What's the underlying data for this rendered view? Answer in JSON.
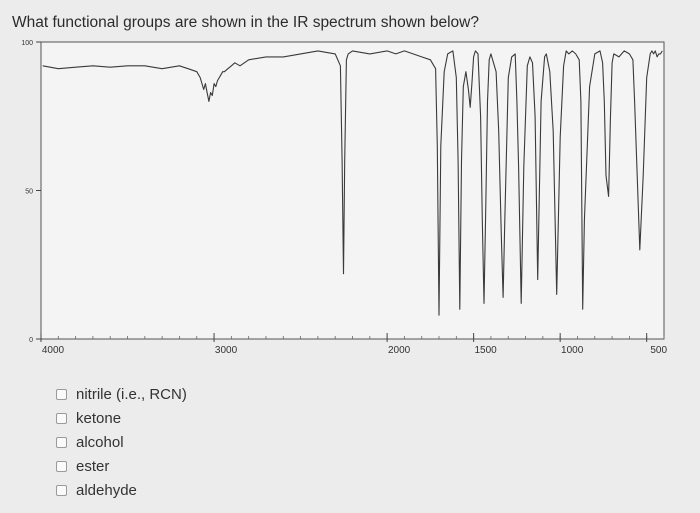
{
  "question": {
    "text": "What functional groups are shown in the IR spectrum shown below?"
  },
  "chart_data": {
    "type": "line",
    "title": "",
    "xlabel": "",
    "ylabel": "",
    "xlim": [
      4000,
      400
    ],
    "ylim": [
      0,
      100
    ],
    "x_ticks": [
      {
        "value": 4000,
        "label": "4000"
      },
      {
        "value": 3000,
        "label": "3000"
      },
      {
        "value": 2000,
        "label": "2000"
      },
      {
        "value": 1500,
        "label": "1500"
      },
      {
        "value": 1000,
        "label": "1000"
      },
      {
        "value": 500,
        "label": "500"
      }
    ],
    "y_ticks": [
      {
        "value": 100,
        "label": "100"
      },
      {
        "value": 50,
        "label": "50"
      },
      {
        "value": 0,
        "label": "0"
      }
    ],
    "grid": false,
    "series": [
      {
        "x": [
          3990,
          3900,
          3800,
          3700,
          3600,
          3500,
          3400,
          3300,
          3200,
          3150,
          3100,
          3080,
          3060,
          3050,
          3040,
          3030,
          3020,
          3010,
          3000,
          2990,
          2980,
          2960,
          2950,
          2940,
          2920,
          2900,
          2880,
          2850,
          2800,
          2700,
          2600,
          2500,
          2400,
          2300,
          2270,
          2260,
          2252,
          2245,
          2235,
          2225,
          2200,
          2100,
          2000,
          1950,
          1900,
          1850,
          1800,
          1750,
          1720,
          1710,
          1700,
          1690,
          1670,
          1650,
          1620,
          1600,
          1590,
          1580,
          1570,
          1560,
          1545,
          1530,
          1520,
          1510,
          1500,
          1490,
          1475,
          1460,
          1450,
          1440,
          1430,
          1420,
          1410,
          1400,
          1385,
          1370,
          1355,
          1340,
          1330,
          1320,
          1300,
          1280,
          1260,
          1250,
          1240,
          1225,
          1210,
          1190,
          1175,
          1160,
          1145,
          1130,
          1110,
          1090,
          1080,
          1060,
          1040,
          1020,
          1000,
          980,
          965,
          950,
          930,
          910,
          890,
          880,
          870,
          860,
          830,
          800,
          770,
          755,
          745,
          735,
          720,
          710,
          700,
          690,
          660,
          630,
          600,
          580,
          570,
          555,
          540,
          520,
          500,
          480,
          470,
          460,
          450,
          440,
          430,
          420,
          410
        ],
        "y": [
          92,
          91,
          91.5,
          92,
          91.5,
          92,
          92,
          91,
          92,
          91,
          90,
          88,
          84,
          86,
          83,
          80,
          83,
          82,
          86,
          85,
          87,
          89,
          90,
          90,
          91,
          92,
          93,
          92,
          94,
          95,
          95,
          96,
          97,
          96,
          92,
          60,
          22,
          60,
          94,
          96,
          97,
          96,
          97,
          96,
          97,
          96,
          95,
          94,
          91,
          65,
          8,
          65,
          90,
          96,
          97,
          88,
          60,
          10,
          60,
          85,
          90,
          84,
          78,
          86,
          95,
          97,
          96,
          75,
          40,
          12,
          45,
          80,
          94,
          96,
          93,
          90,
          70,
          35,
          14,
          40,
          88,
          95,
          96,
          80,
          58,
          12,
          58,
          92,
          95,
          93,
          75,
          20,
          80,
          95,
          96,
          90,
          70,
          15,
          68,
          92,
          97,
          96,
          97,
          96,
          94,
          80,
          10,
          40,
          85,
          96,
          97,
          93,
          80,
          55,
          48,
          74,
          93,
          96,
          95,
          97,
          96,
          94,
          80,
          55,
          30,
          55,
          88,
          96,
          97,
          96,
          97,
          95,
          96,
          96,
          97
        ]
      }
    ]
  },
  "options": [
    {
      "label": "nitrile (i.e., RCN)"
    },
    {
      "label": "ketone"
    },
    {
      "label": "alcohol"
    },
    {
      "label": "ester"
    },
    {
      "label": "aldehyde"
    }
  ]
}
